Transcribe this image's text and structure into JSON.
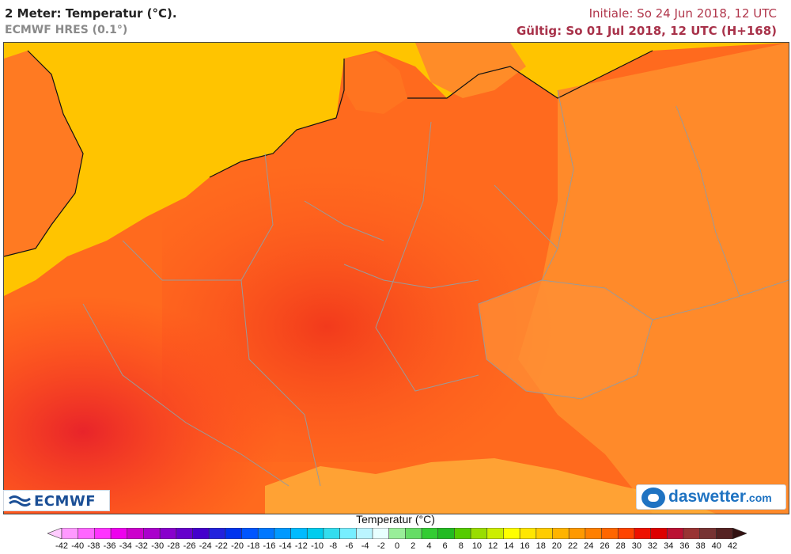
{
  "header": {
    "title": "2 Meter: Temperatur (°C).",
    "model": "ECMWF HRES (0.1°)",
    "init": "Initiale: So 24 Jun 2018, 12 UTC",
    "valid": "Gültig: So 01 Jul 2018, 12 UTC (H+168)"
  },
  "logos": {
    "ecmwf": "ECMWF",
    "daswetter_name": "daswetter",
    "daswetter_tld": ".com"
  },
  "legend": {
    "title": "Temperatur (°C)",
    "ticks": [
      "-42",
      "-40",
      "-38",
      "-36",
      "-34",
      "-32",
      "-30",
      "-28",
      "-26",
      "-24",
      "-22",
      "-20",
      "-18",
      "-16",
      "-14",
      "-12",
      "-10",
      "-8",
      "-6",
      "-4",
      "-2",
      "0",
      "2",
      "4",
      "6",
      "8",
      "10",
      "12",
      "14",
      "16",
      "18",
      "20",
      "22",
      "24",
      "26",
      "28",
      "30",
      "32",
      "34",
      "36",
      "38",
      "40",
      "42"
    ],
    "colors": [
      "#ffccff",
      "#ff99ff",
      "#ff66ff",
      "#ff33ff",
      "#ee00ee",
      "#cc00cc",
      "#aa00cc",
      "#8800cc",
      "#6600cc",
      "#4400cc",
      "#2222dd",
      "#0033ee",
      "#0055ff",
      "#0077ff",
      "#0099ff",
      "#00bbff",
      "#00ccee",
      "#33ddee",
      "#77eeff",
      "#bbf5ff",
      "#e8ffff",
      "#99ee99",
      "#66dd66",
      "#33cc33",
      "#22bb22",
      "#55cc00",
      "#99dd00",
      "#ccee00",
      "#ffff00",
      "#ffe600",
      "#ffcc00",
      "#ffb300",
      "#ff9900",
      "#ff7f00",
      "#ff6600",
      "#ff4400",
      "#ee1100",
      "#dd0000",
      "#bb1133",
      "#993333",
      "#773333",
      "#552222",
      "#331111"
    ],
    "unit": "°C"
  },
  "map": {
    "region": "Central Europe",
    "colors": {
      "sea": "#ffc400",
      "temp_26": "#ff8a1e",
      "temp_28": "#ff6a1e",
      "temp_30": "#ff4a18",
      "temp_32": "#f53020",
      "temp_cool": "#ffaa33",
      "border": "#9a9a9a",
      "coast": "#111111"
    }
  }
}
